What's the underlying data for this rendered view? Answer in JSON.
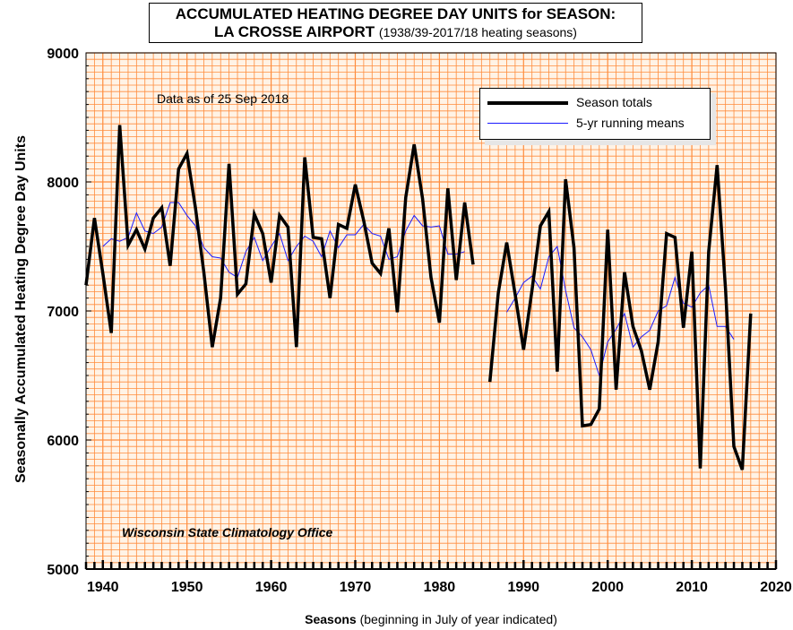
{
  "title": {
    "line1": "ACCUMULATED HEATING DEGREE DAY UNITS for SEASON:",
    "line2_bold": "LA CROSSE AIRPORT",
    "line2_normal": "(1938/39-2017/18 heating seasons)"
  },
  "annotations": {
    "data_as_of": "Data as of 25 Sep 2018",
    "credit": "Wisconsin State Climatology Office"
  },
  "axes": {
    "ylabel": "Seasonally Accumulated Heating Degree Day Units",
    "xlabel_bold": "Seasons",
    "xlabel_normal": "(beginning in July of year indicated)"
  },
  "legend": {
    "season_totals": "Season totals",
    "running_means": "5-yr running means"
  },
  "colors": {
    "grid": "#ff8c3c",
    "plot_bg": "#fff3e6",
    "totals_line": "#000000",
    "means_line": "#1a1aff"
  },
  "chart_data": {
    "type": "line",
    "xlim": [
      1938,
      2020
    ],
    "ylim": [
      5000,
      9000
    ],
    "x_ticks": [
      1940,
      1950,
      1960,
      1970,
      1980,
      1990,
      2000,
      2010,
      2020
    ],
    "y_ticks": [
      5000,
      6000,
      7000,
      8000,
      9000
    ],
    "grid": true,
    "legend_position": "top-right",
    "series": [
      {
        "name": "Season totals",
        "points": [
          [
            1938,
            7200
          ],
          [
            1939,
            7720
          ],
          [
            1940,
            7290
          ],
          [
            1941,
            6830
          ],
          [
            1942,
            8440
          ],
          [
            1943,
            7510
          ],
          [
            1944,
            7630
          ],
          [
            1945,
            7480
          ],
          [
            1946,
            7720
          ],
          [
            1947,
            7800
          ],
          [
            1948,
            7350
          ],
          [
            1949,
            8100
          ],
          [
            1950,
            8220
          ],
          [
            1951,
            7800
          ],
          [
            1952,
            7300
          ],
          [
            1953,
            6720
          ],
          [
            1954,
            7100
          ],
          [
            1955,
            8140
          ],
          [
            1956,
            7130
          ],
          [
            1957,
            7210
          ],
          [
            1958,
            7750
          ],
          [
            1959,
            7600
          ],
          [
            1960,
            7220
          ],
          [
            1961,
            7740
          ],
          [
            1962,
            7650
          ],
          [
            1963,
            6720
          ],
          [
            1964,
            8190
          ],
          [
            1965,
            7570
          ],
          [
            1966,
            7560
          ],
          [
            1967,
            7100
          ],
          [
            1968,
            7670
          ],
          [
            1969,
            7640
          ],
          [
            1970,
            7980
          ],
          [
            1971,
            7700
          ],
          [
            1972,
            7370
          ],
          [
            1973,
            7290
          ],
          [
            1974,
            7640
          ],
          [
            1975,
            6990
          ],
          [
            1976,
            7880
          ],
          [
            1977,
            8290
          ],
          [
            1978,
            7870
          ],
          [
            1979,
            7260
          ],
          [
            1980,
            6910
          ],
          [
            1981,
            7950
          ],
          [
            1982,
            7240
          ],
          [
            1983,
            7840
          ],
          [
            1984,
            7360
          ],
          null,
          [
            1986,
            6450
          ],
          [
            1987,
            7140
          ],
          [
            1988,
            7530
          ],
          [
            1989,
            7130
          ],
          [
            1990,
            6700
          ],
          [
            1991,
            7160
          ],
          [
            1992,
            7660
          ],
          [
            1993,
            7770
          ],
          [
            1994,
            6530
          ],
          [
            1995,
            8020
          ],
          [
            1996,
            7490
          ],
          [
            1997,
            6110
          ],
          [
            1998,
            6120
          ],
          [
            1999,
            6240
          ],
          [
            2000,
            7630
          ],
          [
            2001,
            6390
          ],
          [
            2002,
            7300
          ],
          [
            2003,
            6880
          ],
          [
            2004,
            6690
          ],
          [
            2005,
            6390
          ],
          [
            2006,
            6760
          ],
          [
            2007,
            7600
          ],
          [
            2008,
            7570
          ],
          [
            2009,
            6870
          ],
          [
            2010,
            7460
          ],
          [
            2011,
            5780
          ],
          [
            2012,
            7460
          ],
          [
            2013,
            8130
          ],
          [
            2014,
            7170
          ],
          [
            2015,
            5950
          ],
          [
            2016,
            5770
          ],
          [
            2017,
            6980
          ]
        ]
      },
      {
        "name": "5-yr running means",
        "points": [
          [
            1940,
            7500
          ],
          [
            1941,
            7560
          ],
          [
            1942,
            7540
          ],
          [
            1943,
            7570
          ],
          [
            1944,
            7760
          ],
          [
            1945,
            7620
          ],
          [
            1946,
            7600
          ],
          [
            1947,
            7650
          ],
          [
            1948,
            7840
          ],
          [
            1949,
            7840
          ],
          [
            1950,
            7740
          ],
          [
            1951,
            7660
          ],
          [
            1952,
            7490
          ],
          [
            1953,
            7420
          ],
          [
            1954,
            7410
          ],
          [
            1955,
            7300
          ],
          [
            1956,
            7260
          ],
          [
            1957,
            7460
          ],
          [
            1958,
            7570
          ],
          [
            1959,
            7390
          ],
          [
            1960,
            7500
          ],
          [
            1961,
            7600
          ],
          [
            1962,
            7390
          ],
          [
            1963,
            7500
          ],
          [
            1964,
            7580
          ],
          [
            1965,
            7540
          ],
          [
            1966,
            7420
          ],
          [
            1967,
            7620
          ],
          [
            1968,
            7490
          ],
          [
            1969,
            7590
          ],
          [
            1970,
            7590
          ],
          [
            1971,
            7670
          ],
          [
            1972,
            7600
          ],
          [
            1973,
            7580
          ],
          [
            1974,
            7400
          ],
          [
            1975,
            7420
          ],
          [
            1976,
            7620
          ],
          [
            1977,
            7740
          ],
          [
            1978,
            7660
          ],
          [
            1979,
            7650
          ],
          [
            1980,
            7660
          ],
          [
            1981,
            7440
          ],
          [
            1982,
            7440
          ],
          [
            1983,
            7460
          ],
          null,
          [
            1988,
            6990
          ],
          [
            1989,
            7100
          ],
          [
            1990,
            7220
          ],
          [
            1991,
            7270
          ],
          [
            1992,
            7170
          ],
          [
            1993,
            7420
          ],
          [
            1994,
            7500
          ],
          [
            1995,
            7160
          ],
          [
            1996,
            6870
          ],
          [
            1997,
            6800
          ],
          [
            1998,
            6700
          ],
          [
            1999,
            6500
          ],
          [
            2000,
            6760
          ],
          [
            2001,
            6860
          ],
          [
            2002,
            6980
          ],
          [
            2003,
            6720
          ],
          [
            2004,
            6800
          ],
          [
            2005,
            6850
          ],
          [
            2006,
            7000
          ],
          [
            2007,
            7040
          ],
          [
            2008,
            7260
          ],
          [
            2009,
            7060
          ],
          [
            2010,
            7030
          ],
          [
            2011,
            7140
          ],
          [
            2012,
            7200
          ],
          [
            2013,
            6880
          ],
          [
            2014,
            6880
          ],
          [
            2015,
            6780
          ]
        ]
      }
    ]
  }
}
